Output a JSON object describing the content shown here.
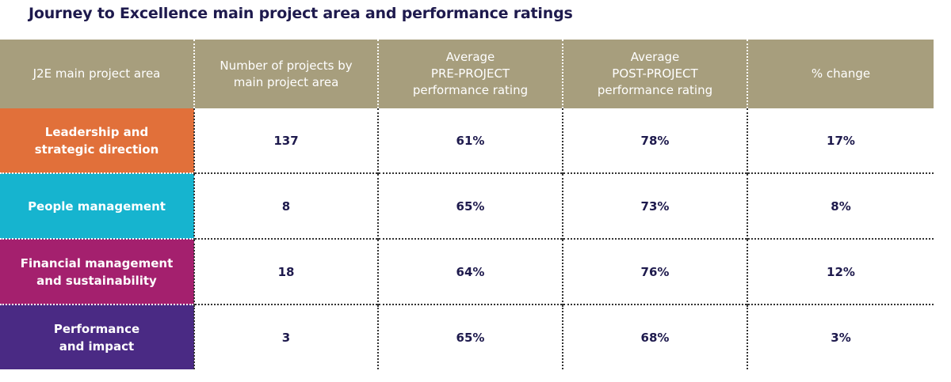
{
  "header": {
    "title": "Journey to Excellence main project area and performance ratings"
  },
  "table": {
    "columns": [
      "J2E main project area",
      "Number of projects by\nmain project area",
      "Average\nPRE-PROJECT\nperformance rating",
      "Average\nPOST-PROJECT\nperformance rating",
      "% change"
    ],
    "rows": [
      [
        "Leadership and\nstrategic direction",
        "137",
        "61%",
        "78%",
        "17%"
      ],
      [
        "People management",
        "8",
        "65%",
        "73%",
        "8%"
      ],
      [
        "Financial management\nand sustainability",
        "18",
        "64%",
        "76%",
        "12%"
      ],
      [
        "Performance\nand impact",
        "3",
        "65%",
        "68%",
        "3%"
      ]
    ]
  }
}
